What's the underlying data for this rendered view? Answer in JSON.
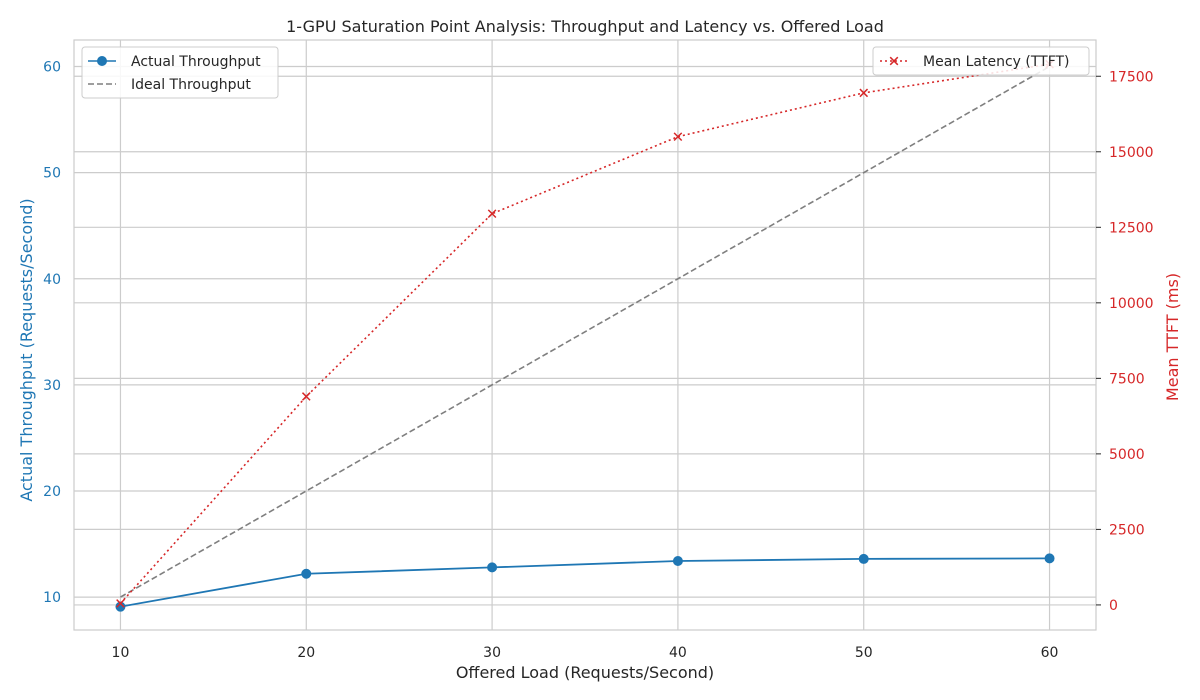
{
  "chart_data": {
    "type": "line",
    "title": "1-GPU Saturation Point Analysis: Throughput and Latency vs. Offered Load",
    "xlabel": "Offered Load (Requests/Second)",
    "ylabel": "Actual Throughput (Requests/Second)",
    "y2label": "Mean TTFT (ms)",
    "x": [
      10,
      20,
      30,
      40,
      50,
      60
    ],
    "x_ticks": [
      "10",
      "20",
      "30",
      "40",
      "50",
      "60"
    ],
    "xlim": [
      7.5,
      62.5
    ],
    "ylim": [
      6.9,
      62.5
    ],
    "y_ticks": [
      "10",
      "20",
      "30",
      "40",
      "50",
      "60"
    ],
    "y2lim": [
      -830,
      18700
    ],
    "y2_ticks": [
      "0",
      "2500",
      "5000",
      "7500",
      "10000",
      "12500",
      "15000",
      "17500"
    ],
    "grid": true,
    "series": [
      {
        "name": "Actual Throughput",
        "axis": "left",
        "values": [
          9.1,
          12.2,
          12.8,
          13.4,
          13.6,
          13.65
        ],
        "color": "#1f77b4",
        "style": "solid",
        "marker": "circle"
      },
      {
        "name": "Ideal Throughput",
        "axis": "left",
        "values": [
          10,
          20,
          30,
          40,
          50,
          60
        ],
        "color": "#7f7f7f",
        "style": "dashed",
        "marker": "none"
      },
      {
        "name": "Mean Latency (TTFT)",
        "axis": "right",
        "values": [
          50,
          6900,
          12950,
          15500,
          16950,
          17900
        ],
        "color": "#d62728",
        "style": "dotted",
        "marker": "x"
      }
    ],
    "legend_left": {
      "placement": "upper-left",
      "entries": [
        "Actual Throughput",
        "Ideal Throughput"
      ]
    },
    "legend_right": {
      "placement": "upper-right",
      "entries": [
        "Mean Latency (TTFT)"
      ]
    },
    "colors": {
      "left_axis": "#1f77b4",
      "right_axis": "#d62728",
      "grid": "#cccccc",
      "text": "#262626"
    }
  }
}
